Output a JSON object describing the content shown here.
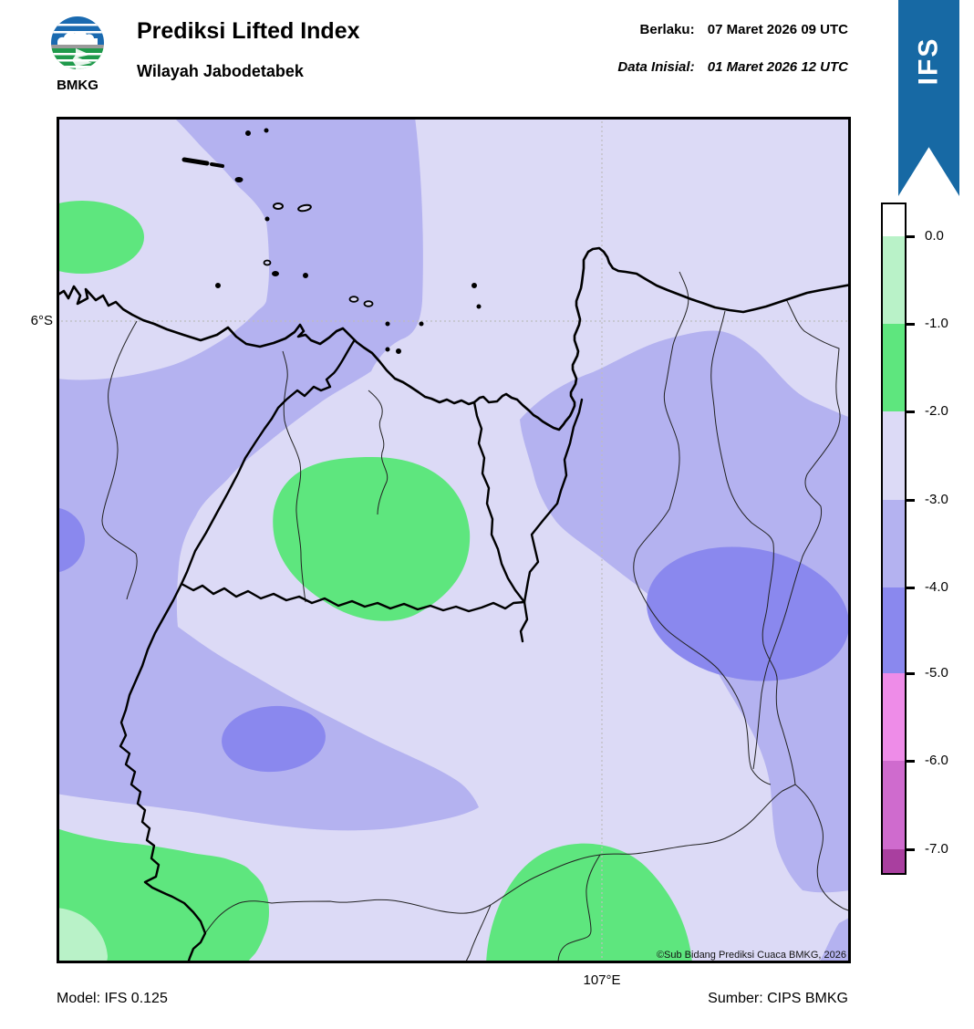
{
  "header": {
    "logo_text": "BMKG",
    "title": "Prediksi Lifted Index",
    "subtitle": "Wilayah Jabodetabek",
    "valid_label": "Berlaku:",
    "valid_value": "07 Maret 2026 09 UTC",
    "init_label": "Data Inisial:",
    "init_value": "01 Maret 2026 12 UTC",
    "ribbon_label": "IFS"
  },
  "map": {
    "lat_label": "6°S",
    "lon_label": "107°E",
    "copyright": "©Sub Bidang Prediksi Cuaca BMKG, 2026"
  },
  "legend": {
    "ticks": [
      "0.0",
      "-1.0",
      "-2.0",
      "-3.0",
      "-4.0",
      "-5.0",
      "-6.0",
      "-7.0"
    ],
    "colors": [
      "#ffffff",
      "#b9f2c8",
      "#5ee67e",
      "#dcdaf6",
      "#b4b2f0",
      "#8a88ee",
      "#ee8ce8",
      "#cf6bce",
      "#a93f9f"
    ],
    "segment_heights": [
      35,
      96,
      96,
      97,
      96,
      94,
      96,
      97,
      26
    ]
  },
  "footer": {
    "model": "Model: IFS 0.125",
    "source": "Sumber: CIPS BMKG"
  },
  "colors": {
    "ribbon_blue": "#1769a4",
    "logo_blue": "#1a6ab0",
    "logo_green": "#1f9a4b",
    "gridline": "#bdbdbd",
    "boundary_thin": "#222222",
    "boundary_thick": "#000000"
  }
}
